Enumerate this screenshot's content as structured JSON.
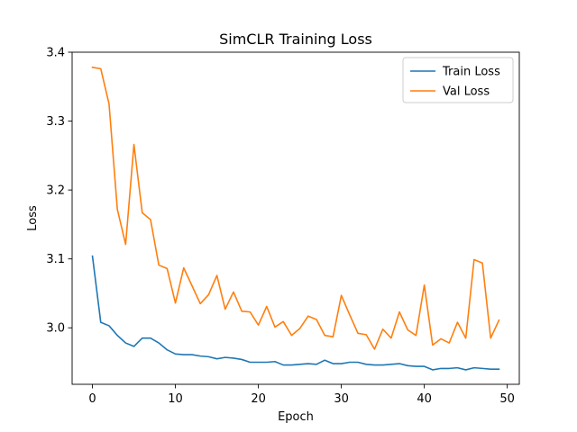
{
  "chart_data": {
    "type": "line",
    "title": "SimCLR Training Loss",
    "xlabel": "Epoch",
    "ylabel": "Loss",
    "xlim": [
      -2.45,
      51.45
    ],
    "ylim": [
      2.918,
      3.4
    ],
    "xticks": [
      0,
      10,
      20,
      30,
      40,
      50
    ],
    "yticks": [
      3.0,
      3.1,
      3.2,
      3.3,
      3.4
    ],
    "ytick_labels": [
      "3.0",
      "3.1",
      "3.2",
      "3.3",
      "3.4"
    ],
    "grid": false,
    "legend_position": "top-right",
    "series": [
      {
        "name": "Train Loss",
        "color": "#1f77b4",
        "x": [
          0,
          1,
          2,
          3,
          4,
          5,
          6,
          7,
          8,
          9,
          10,
          11,
          12,
          13,
          14,
          15,
          16,
          17,
          18,
          19,
          20,
          21,
          22,
          23,
          24,
          25,
          26,
          27,
          28,
          29,
          30,
          31,
          32,
          33,
          34,
          35,
          36,
          37,
          38,
          39,
          40,
          41,
          42,
          43,
          44,
          45,
          46,
          47,
          48,
          49
        ],
        "values": [
          3.104,
          3.008,
          3.003,
          2.989,
          2.978,
          2.973,
          2.985,
          2.985,
          2.978,
          2.968,
          2.962,
          2.961,
          2.961,
          2.959,
          2.958,
          2.955,
          2.957,
          2.956,
          2.954,
          2.95,
          2.95,
          2.95,
          2.951,
          2.946,
          2.946,
          2.947,
          2.948,
          2.947,
          2.953,
          2.948,
          2.948,
          2.95,
          2.95,
          2.947,
          2.946,
          2.946,
          2.947,
          2.948,
          2.945,
          2.944,
          2.944,
          2.939,
          2.941,
          2.941,
          2.942,
          2.939,
          2.942,
          2.941,
          2.94,
          2.94
        ]
      },
      {
        "name": "Val Loss",
        "color": "#ff7f0e",
        "x": [
          0,
          1,
          2,
          3,
          4,
          5,
          6,
          7,
          8,
          9,
          10,
          11,
          12,
          13,
          14,
          15,
          16,
          17,
          18,
          19,
          20,
          21,
          22,
          23,
          24,
          25,
          26,
          27,
          28,
          29,
          30,
          31,
          32,
          33,
          34,
          35,
          36,
          37,
          38,
          39,
          40,
          41,
          42,
          43,
          44,
          45,
          46,
          47,
          48,
          49
        ],
        "values": [
          3.378,
          3.376,
          3.325,
          3.172,
          3.121,
          3.266,
          3.167,
          3.157,
          3.091,
          3.086,
          3.036,
          3.087,
          3.061,
          3.035,
          3.048,
          3.076,
          3.027,
          3.052,
          3.024,
          3.023,
          3.004,
          3.031,
          3.001,
          3.009,
          2.989,
          2.999,
          3.017,
          3.012,
          2.989,
          2.987,
          3.047,
          3.019,
          2.992,
          2.99,
          2.969,
          2.998,
          2.985,
          3.023,
          2.997,
          2.989,
          3.062,
          2.975,
          2.984,
          2.978,
          3.008,
          2.985,
          3.099,
          3.094,
          2.985,
          3.011
        ]
      }
    ]
  }
}
